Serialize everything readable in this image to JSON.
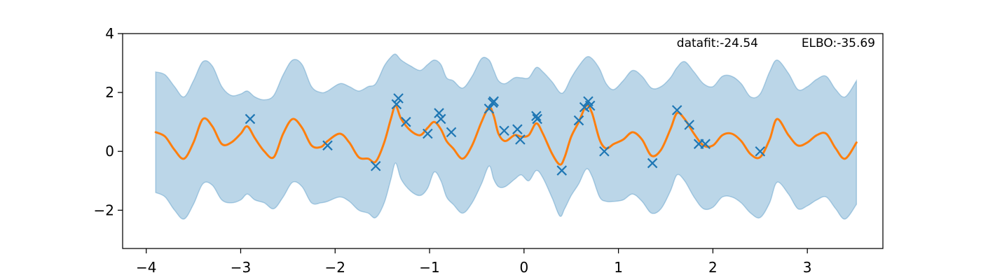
{
  "chart_data": {
    "type": "line",
    "title": "",
    "xlabel": "",
    "ylabel": "",
    "xlim": [
      -4.25,
      3.8
    ],
    "ylim": [
      -3.3,
      4.0
    ],
    "x_ticks": [
      -4,
      -3,
      -2,
      -1,
      0,
      1,
      2,
      3
    ],
    "x_tick_labels": [
      "−4",
      "−3",
      "−2",
      "−1",
      "0",
      "1",
      "2",
      "3"
    ],
    "y_ticks": [
      -2,
      0,
      2,
      4
    ],
    "y_tick_labels": [
      "−2",
      "0",
      "2",
      "4"
    ],
    "grid": false,
    "annotations": {
      "datafit": "datafit:-24.54",
      "elbo": "ELBO:-35.69"
    },
    "colors": {
      "mean": "#ff7f0e",
      "band": "#1f77b4",
      "points": "#1f77b4"
    },
    "series": [
      {
        "name": "predictive mean",
        "kind": "line",
        "x": [
          -3.9,
          -3.8,
          -3.7,
          -3.6,
          -3.5,
          -3.4,
          -3.3,
          -3.2,
          -3.1,
          -3.0,
          -2.93,
          -2.85,
          -2.75,
          -2.65,
          -2.55,
          -2.45,
          -2.35,
          -2.25,
          -2.15,
          -2.08,
          -1.95,
          -1.85,
          -1.75,
          -1.65,
          -1.57,
          -1.48,
          -1.41,
          -1.36,
          -1.3,
          -1.2,
          -1.1,
          -1.02,
          -0.95,
          -0.88,
          -0.82,
          -0.75,
          -0.65,
          -0.55,
          -0.45,
          -0.37,
          -0.32,
          -0.27,
          -0.2,
          -0.1,
          -0.03,
          0.05,
          0.13,
          0.2,
          0.3,
          0.38,
          0.43,
          0.5,
          0.58,
          0.66,
          0.72,
          0.8,
          0.87,
          0.95,
          1.05,
          1.15,
          1.25,
          1.35,
          1.45,
          1.55,
          1.62,
          1.7,
          1.8,
          1.9,
          2.0,
          2.1,
          2.2,
          2.3,
          2.4,
          2.5,
          2.6,
          2.68,
          2.8,
          2.9,
          3.0,
          3.1,
          3.2,
          3.3,
          3.4,
          3.52
        ],
        "y": [
          0.65,
          0.5,
          0.05,
          -0.25,
          0.3,
          1.1,
          0.85,
          0.25,
          0.3,
          0.6,
          0.85,
          0.45,
          0.0,
          -0.2,
          0.6,
          1.1,
          0.8,
          0.2,
          0.15,
          0.35,
          0.6,
          0.3,
          -0.2,
          -0.25,
          -0.35,
          0.3,
          1.1,
          1.55,
          1.1,
          0.7,
          0.55,
          0.8,
          1.0,
          0.75,
          0.35,
          0.1,
          -0.25,
          0.2,
          1.0,
          1.5,
          1.2,
          0.6,
          0.35,
          0.55,
          0.5,
          0.55,
          0.95,
          0.6,
          -0.1,
          -0.45,
          -0.2,
          0.5,
          1.0,
          1.55,
          1.3,
          0.4,
          0.1,
          0.25,
          0.4,
          0.65,
          0.4,
          -0.15,
          0.05,
          0.75,
          1.3,
          1.1,
          0.6,
          0.2,
          0.2,
          0.55,
          0.6,
          0.35,
          -0.1,
          -0.2,
          0.4,
          1.1,
          0.55,
          0.2,
          0.3,
          0.55,
          0.6,
          0.1,
          -0.25,
          0.3
        ]
      },
      {
        "name": "uncertainty band",
        "kind": "band",
        "x": [
          -3.9,
          -3.8,
          -3.7,
          -3.6,
          -3.5,
          -3.4,
          -3.3,
          -3.2,
          -3.1,
          -3.0,
          -2.93,
          -2.85,
          -2.75,
          -2.65,
          -2.55,
          -2.45,
          -2.35,
          -2.25,
          -2.15,
          -2.08,
          -1.95,
          -1.85,
          -1.75,
          -1.65,
          -1.57,
          -1.48,
          -1.41,
          -1.36,
          -1.3,
          -1.2,
          -1.1,
          -1.02,
          -0.95,
          -0.88,
          -0.82,
          -0.75,
          -0.65,
          -0.55,
          -0.45,
          -0.37,
          -0.32,
          -0.27,
          -0.2,
          -0.1,
          -0.03,
          0.05,
          0.13,
          0.2,
          0.3,
          0.38,
          0.43,
          0.5,
          0.58,
          0.66,
          0.72,
          0.8,
          0.87,
          0.95,
          1.05,
          1.15,
          1.25,
          1.35,
          1.45,
          1.55,
          1.62,
          1.7,
          1.8,
          1.9,
          2.0,
          2.1,
          2.2,
          2.3,
          2.4,
          2.5,
          2.6,
          2.68,
          2.8,
          2.9,
          3.0,
          3.1,
          3.2,
          3.3,
          3.4,
          3.52
        ],
        "upper": [
          2.7,
          2.6,
          2.2,
          1.85,
          2.4,
          3.05,
          2.9,
          2.2,
          1.9,
          1.95,
          2.05,
          1.85,
          1.75,
          1.9,
          2.6,
          3.1,
          2.95,
          2.2,
          2.0,
          2.05,
          2.3,
          2.2,
          2.05,
          2.2,
          2.3,
          2.9,
          3.2,
          3.3,
          3.1,
          2.9,
          2.75,
          2.95,
          3.1,
          2.95,
          2.5,
          2.4,
          2.15,
          2.55,
          3.15,
          3.1,
          2.75,
          2.4,
          2.3,
          2.5,
          2.5,
          2.5,
          2.85,
          2.7,
          2.35,
          2.0,
          2.05,
          2.5,
          2.9,
          3.2,
          3.15,
          2.8,
          2.3,
          2.1,
          2.4,
          2.75,
          2.55,
          2.15,
          2.2,
          2.5,
          2.85,
          3.05,
          2.7,
          2.3,
          2.2,
          2.55,
          2.55,
          2.3,
          1.85,
          1.95,
          2.7,
          3.1,
          2.65,
          2.1,
          2.2,
          2.45,
          2.55,
          2.1,
          1.85,
          2.4
        ],
        "lower": [
          -1.4,
          -1.55,
          -2.0,
          -2.3,
          -1.8,
          -1.1,
          -1.15,
          -1.65,
          -1.75,
          -1.65,
          -1.45,
          -1.65,
          -1.75,
          -1.95,
          -1.55,
          -1.05,
          -1.2,
          -1.75,
          -1.75,
          -1.7,
          -1.55,
          -1.7,
          -2.0,
          -2.1,
          -2.25,
          -1.75,
          -0.95,
          -0.4,
          -0.95,
          -1.35,
          -1.5,
          -1.25,
          -0.7,
          -1.0,
          -1.55,
          -1.8,
          -2.1,
          -1.75,
          -1.1,
          -0.5,
          -0.95,
          -1.2,
          -1.2,
          -0.95,
          -0.8,
          -1.0,
          -0.65,
          -0.9,
          -1.6,
          -2.2,
          -1.95,
          -1.5,
          -1.1,
          -0.6,
          -0.85,
          -1.55,
          -1.7,
          -1.7,
          -1.65,
          -1.45,
          -1.7,
          -2.1,
          -1.95,
          -1.35,
          -0.8,
          -1.0,
          -1.55,
          -1.95,
          -1.9,
          -1.55,
          -1.55,
          -1.75,
          -2.1,
          -2.25,
          -1.75,
          -1.05,
          -1.45,
          -1.95,
          -1.85,
          -1.65,
          -1.55,
          -1.95,
          -2.3,
          -1.8
        ]
      },
      {
        "name": "observations",
        "kind": "scatter",
        "x": [
          -2.9,
          -2.08,
          -1.57,
          -1.35,
          -1.33,
          -1.25,
          -1.02,
          -0.88,
          -0.9,
          -0.77,
          -0.37,
          -0.32,
          -0.33,
          -0.21,
          -0.07,
          -0.04,
          0.13,
          0.14,
          0.4,
          0.58,
          0.64,
          0.68,
          0.7,
          0.85,
          1.36,
          1.62,
          1.75,
          1.85,
          1.92,
          2.5
        ],
        "y": [
          1.1,
          0.2,
          -0.5,
          1.6,
          1.8,
          1.0,
          0.6,
          1.1,
          1.3,
          0.65,
          1.45,
          1.7,
          1.65,
          0.7,
          0.75,
          0.4,
          1.2,
          1.1,
          -0.65,
          1.05,
          1.5,
          1.7,
          1.55,
          0.0,
          -0.4,
          1.4,
          0.9,
          0.25,
          0.25,
          0.0
        ]
      }
    ]
  }
}
